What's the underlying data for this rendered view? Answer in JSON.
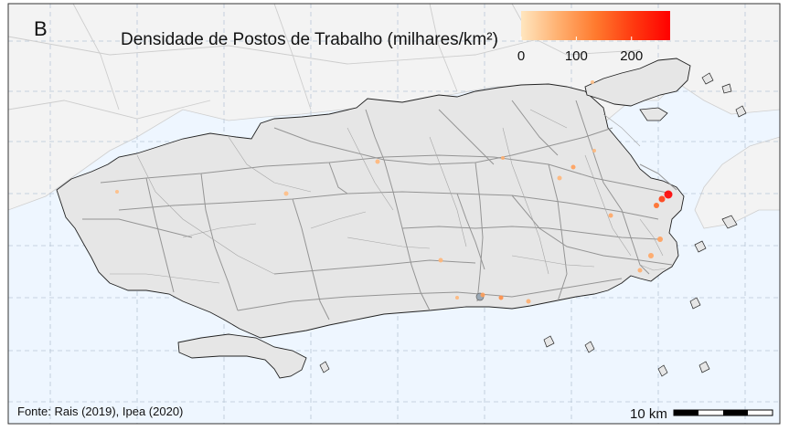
{
  "panel_label": "B",
  "legend": {
    "title": "Densidade de Postos de Trabalho (milhares/km²)",
    "ticks": [
      "0",
      "100",
      "200"
    ],
    "tick_values": [
      0,
      100,
      200
    ],
    "range": [
      0,
      270
    ],
    "colors": [
      "#ffe6bf",
      "#ffb070",
      "#ff7a2e",
      "#ff3a10",
      "#ff0000"
    ]
  },
  "source": "Fonte: Rais (2019), Ipea (2020)",
  "scale_bar": {
    "label": "10 km"
  },
  "colors": {
    "water": "#eef6ff",
    "land": "#e6e6e6",
    "outside_land": "#f3f3f3",
    "grid": "#b8c6d6",
    "road": "#8c8c8c"
  },
  "hotspots": [
    {
      "name": "centro",
      "density": 270
    },
    {
      "name": "centro-2",
      "density": 200
    },
    {
      "name": "centro-3",
      "density": 150
    },
    {
      "name": "zona-sul-1",
      "density": 90
    },
    {
      "name": "zona-sul-2",
      "density": 80
    },
    {
      "name": "zona-sul-3",
      "density": 70
    },
    {
      "name": "barra-1",
      "density": 90
    },
    {
      "name": "barra-2",
      "density": 110
    },
    {
      "name": "barra-3",
      "density": 70
    },
    {
      "name": "barra-4",
      "density": 60
    },
    {
      "name": "jacarepagua",
      "density": 60
    },
    {
      "name": "meier",
      "density": 80
    },
    {
      "name": "penha",
      "density": 90
    },
    {
      "name": "norte-1",
      "density": 60
    },
    {
      "name": "norte-2",
      "density": 60
    },
    {
      "name": "ilha",
      "density": 50
    },
    {
      "name": "oeste-1",
      "density": 60
    },
    {
      "name": "oeste-2",
      "density": 50
    },
    {
      "name": "oeste-3",
      "density": 50
    },
    {
      "name": "tijuca",
      "density": 70
    }
  ]
}
